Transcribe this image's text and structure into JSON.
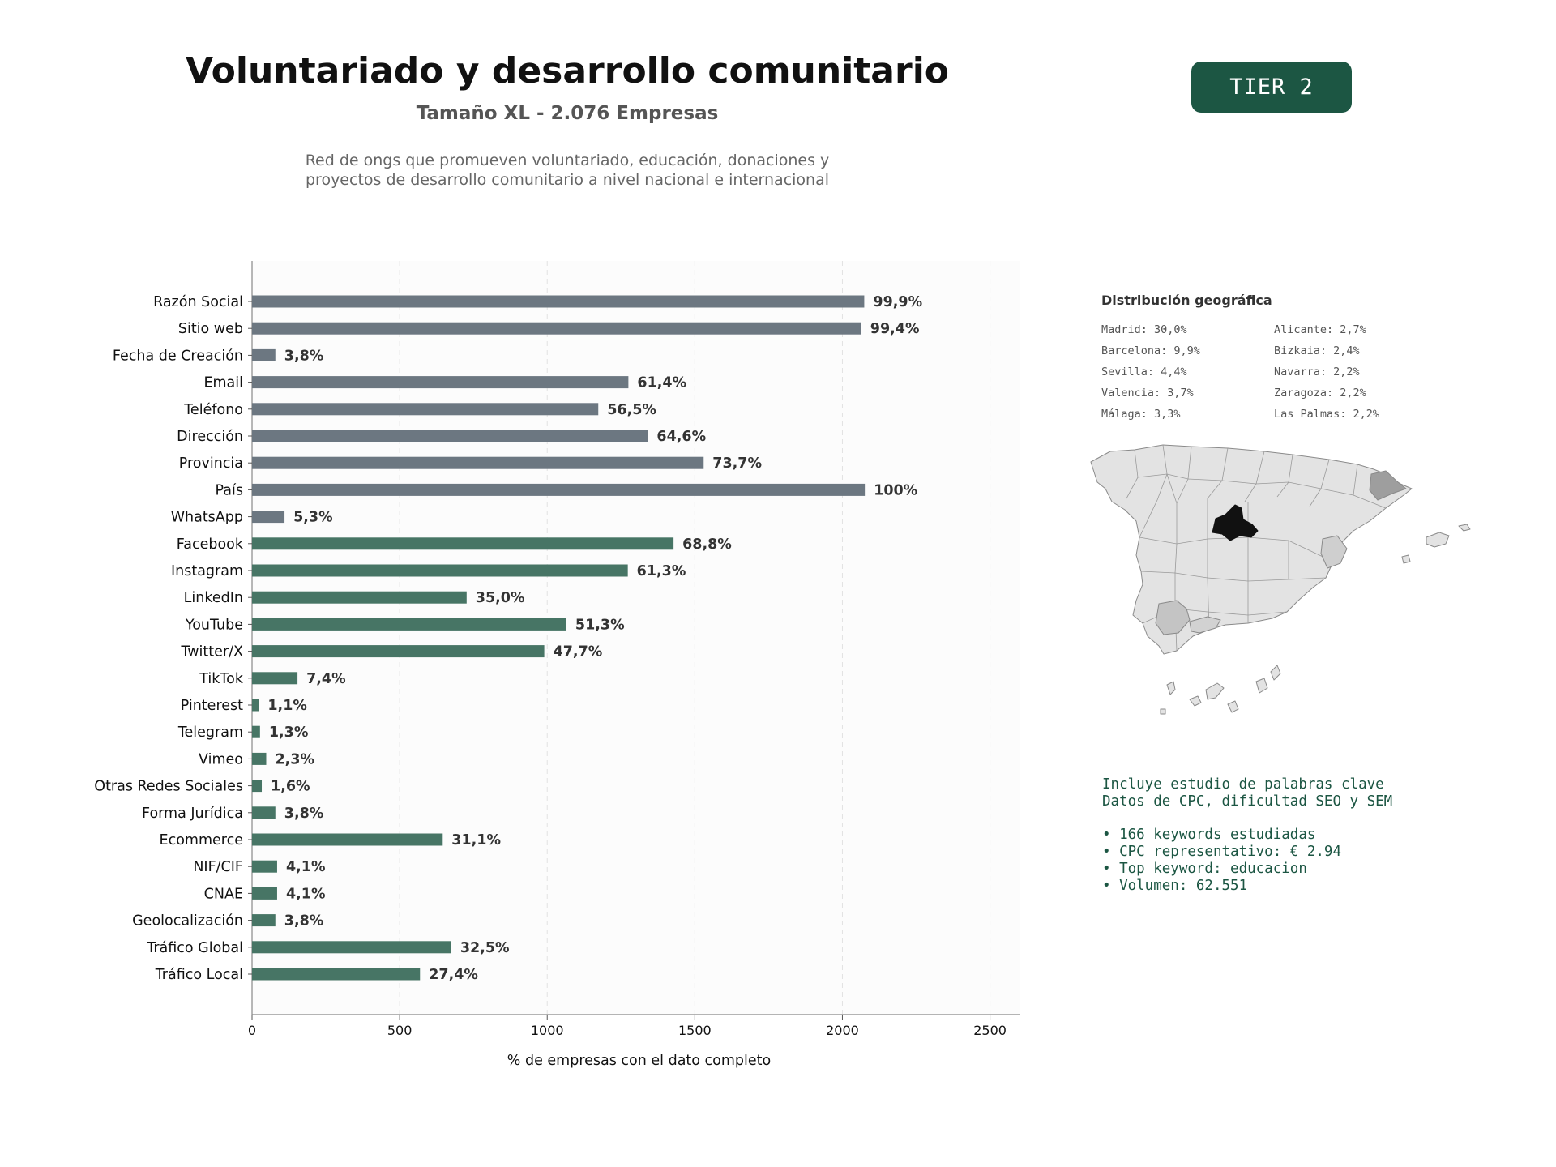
{
  "header": {
    "title": "Voluntariado y desarrollo comunitario",
    "subtitle": "Tamaño XL - 2.076 Empresas",
    "description_line1": "Red de ongs que promueven voluntariado, educación, donaciones y",
    "description_line2": "proyectos de desarrollo comunitario a nivel nacional e internacional",
    "tier_badge": "TIER 2"
  },
  "colors": {
    "gray_bar": "#6c7781",
    "green_bar": "#477565",
    "tier_bg": "#1c5643",
    "highlight_region": "#111111"
  },
  "chart_data": {
    "type": "bar",
    "orientation": "horizontal",
    "xlabel": "% de empresas con el dato completo",
    "xlim": [
      0,
      2600
    ],
    "xticks": [
      0,
      500,
      1000,
      1500,
      2000,
      2500
    ],
    "grid": "vertical dashed",
    "bars": [
      {
        "category": "Razón Social",
        "value": 2074,
        "label": "99,9%",
        "group": "gray"
      },
      {
        "category": "Sitio web",
        "value": 2064,
        "label": "99,4%",
        "group": "gray"
      },
      {
        "category": "Fecha de Creación",
        "value": 79,
        "label": "3,8%",
        "group": "gray"
      },
      {
        "category": "Email",
        "value": 1275,
        "label": "61,4%",
        "group": "gray"
      },
      {
        "category": "Teléfono",
        "value": 1173,
        "label": "56,5%",
        "group": "gray"
      },
      {
        "category": "Dirección",
        "value": 1341,
        "label": "64,6%",
        "group": "gray"
      },
      {
        "category": "Provincia",
        "value": 1530,
        "label": "73,7%",
        "group": "gray"
      },
      {
        "category": "País",
        "value": 2076,
        "label": "100%",
        "group": "gray"
      },
      {
        "category": "WhatsApp",
        "value": 110,
        "label": "5,3%",
        "group": "gray"
      },
      {
        "category": "Facebook",
        "value": 1428,
        "label": "68,8%",
        "group": "green"
      },
      {
        "category": "Instagram",
        "value": 1273,
        "label": "61,3%",
        "group": "green"
      },
      {
        "category": "LinkedIn",
        "value": 727,
        "label": "35,0%",
        "group": "green"
      },
      {
        "category": "YouTube",
        "value": 1065,
        "label": "51,3%",
        "group": "green"
      },
      {
        "category": "Twitter/X",
        "value": 990,
        "label": "47,7%",
        "group": "green"
      },
      {
        "category": "TikTok",
        "value": 154,
        "label": "7,4%",
        "group": "green"
      },
      {
        "category": "Pinterest",
        "value": 23,
        "label": "1,1%",
        "group": "green"
      },
      {
        "category": "Telegram",
        "value": 27,
        "label": "1,3%",
        "group": "green"
      },
      {
        "category": "Vimeo",
        "value": 48,
        "label": "2,3%",
        "group": "green"
      },
      {
        "category": "Otras Redes Sociales",
        "value": 33,
        "label": "1,6%",
        "group": "green"
      },
      {
        "category": "Forma Jurídica",
        "value": 79,
        "label": "3,8%",
        "group": "green"
      },
      {
        "category": "Ecommerce",
        "value": 646,
        "label": "31,1%",
        "group": "green"
      },
      {
        "category": "NIF/CIF",
        "value": 85,
        "label": "4,1%",
        "group": "green"
      },
      {
        "category": "CNAE",
        "value": 85,
        "label": "4,1%",
        "group": "green"
      },
      {
        "category": "Geolocalización",
        "value": 79,
        "label": "3,8%",
        "group": "green"
      },
      {
        "category": "Tráfico Global",
        "value": 675,
        "label": "32,5%",
        "group": "green"
      },
      {
        "category": "Tráfico Local",
        "value": 569,
        "label": "27,4%",
        "group": "green"
      }
    ]
  },
  "geo": {
    "title": "Distribución geográfica",
    "items": [
      "Madrid: 30,0%",
      "Alicante: 2,7%",
      "Barcelona: 9,9%",
      "Bizkaia: 2,4%",
      "Sevilla: 4,4%",
      "Navarra: 2,2%",
      "Valencia: 3,7%",
      "Zaragoza: 2,2%",
      "Málaga: 3,3%",
      "Las Palmas: 2,2%"
    ]
  },
  "keywords": {
    "line1": "Incluye estudio de palabras clave",
    "line2": "Datos de CPC, dificultad SEO y SEM",
    "bullets": [
      "• 166 keywords estudiadas",
      "• CPC representativo: € 2.94",
      "• Top keyword: educacion",
      "• Volumen: 62.551"
    ]
  }
}
